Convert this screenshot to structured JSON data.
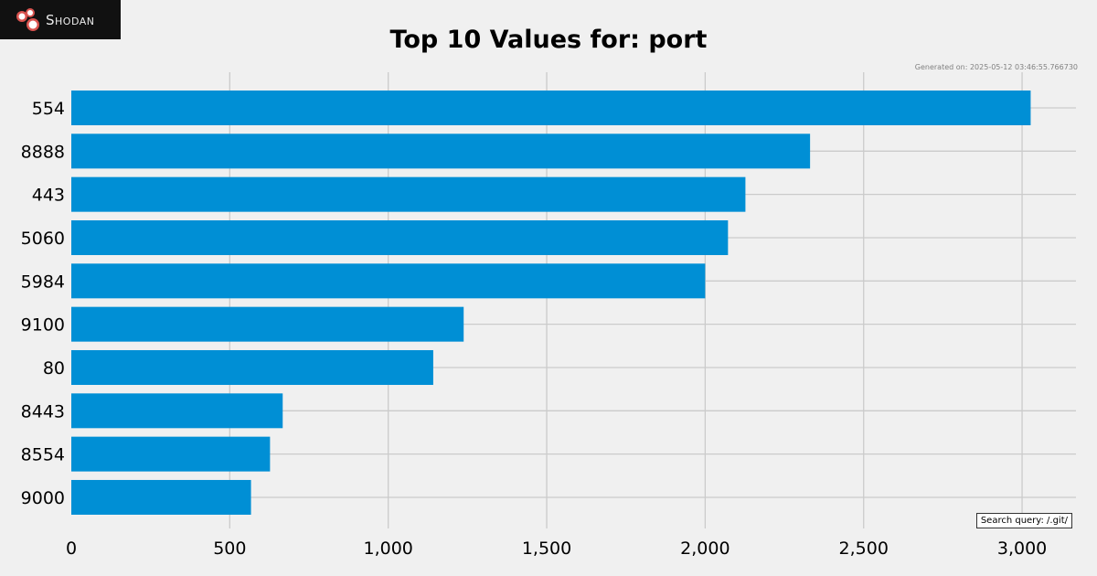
{
  "brand": {
    "logo_text": "Shodan",
    "icon": "shodan-logo-icon"
  },
  "footer": {
    "generated": "Generated on: 2025-05-12 03:46:55.766730",
    "query": "Search query: /.git/"
  },
  "colors": {
    "background": "#f0f0f0",
    "bar": "#008fd5",
    "grid": "#cbcbcb",
    "logo_bg": "#111111",
    "logo_accent": "#d9534f"
  },
  "chart_data": {
    "type": "bar",
    "orientation": "horizontal",
    "title": "Top 10 Values for: port",
    "xlabel": "",
    "ylabel": "",
    "categories": [
      "554",
      "8888",
      "443",
      "5060",
      "5984",
      "9100",
      "80",
      "8443",
      "8554",
      "9000"
    ],
    "values": [
      3027,
      2331,
      2127,
      2072,
      2000,
      1238,
      1142,
      667,
      627,
      567
    ],
    "xlim": [
      0,
      3170
    ],
    "x_ticks": [
      0,
      500,
      1000,
      1500,
      2000,
      2500,
      3000
    ],
    "x_tick_labels": [
      "0",
      "500",
      "1,000",
      "1,500",
      "2,000",
      "2,500",
      "3,000"
    ],
    "grid": true
  }
}
